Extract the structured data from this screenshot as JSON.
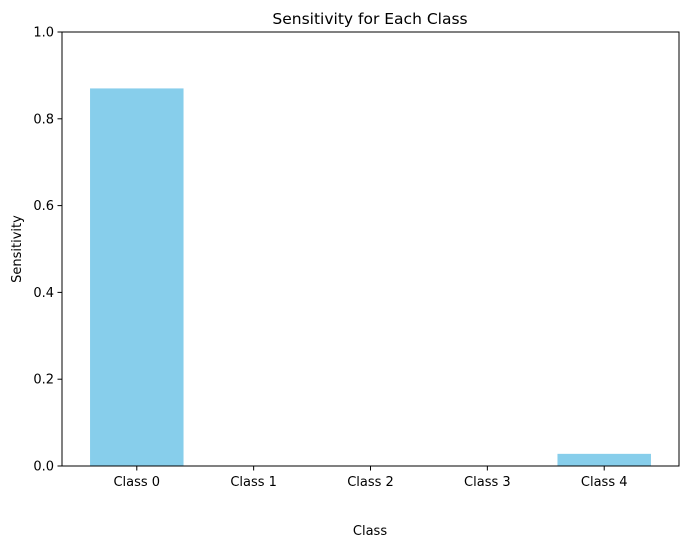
{
  "chart_data": {
    "type": "bar",
    "title": "Sensitivity for Each Class",
    "xlabel": "Class",
    "ylabel": "Sensitivity",
    "categories": [
      "Class 0",
      "Class 1",
      "Class 2",
      "Class 3",
      "Class 4"
    ],
    "values": [
      0.87,
      0.0,
      0.0,
      0.0,
      0.028
    ],
    "ylim": [
      0,
      1.0
    ],
    "yticks": [
      "0.0",
      "0.2",
      "0.4",
      "0.6",
      "0.8",
      "1.0"
    ],
    "bar_color": "#87ceeb",
    "grid": false,
    "legend": "none"
  }
}
